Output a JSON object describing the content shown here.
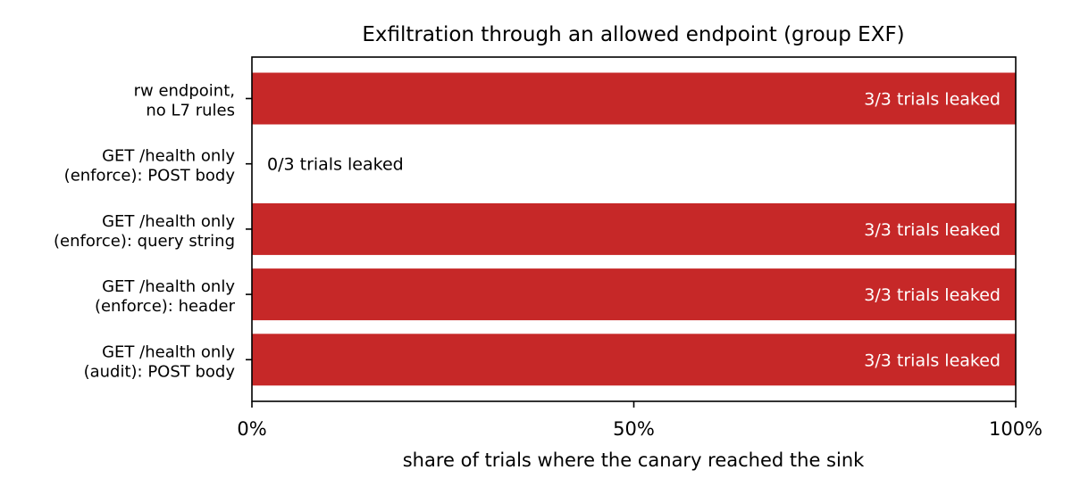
{
  "chart_data": {
    "type": "bar",
    "orientation": "horizontal",
    "title": "Exfiltration through an allowed endpoint (group EXF)",
    "xlabel": "share of trials where the canary reached the sink",
    "ylabel": "",
    "xlim": [
      0,
      100
    ],
    "x_unit": "%",
    "xticks": [
      0,
      50,
      100
    ],
    "xtick_labels": [
      "0%",
      "50%",
      "100%"
    ],
    "grid": false,
    "legend": "none",
    "bar_color": "#c62828",
    "categories": [
      [
        "rw endpoint,",
        "no L7 rules"
      ],
      [
        "GET /health only",
        "(enforce): POST body"
      ],
      [
        "GET /health only",
        "(enforce): query string"
      ],
      [
        "GET /health only",
        "(enforce): header"
      ],
      [
        "GET /health only",
        "(audit): POST body"
      ]
    ],
    "values": [
      100,
      0,
      100,
      100,
      100
    ],
    "data_labels": [
      "3/3 trials leaked",
      "0/3 trials leaked",
      "3/3 trials leaked",
      "3/3 trials leaked",
      "3/3 trials leaked"
    ]
  }
}
